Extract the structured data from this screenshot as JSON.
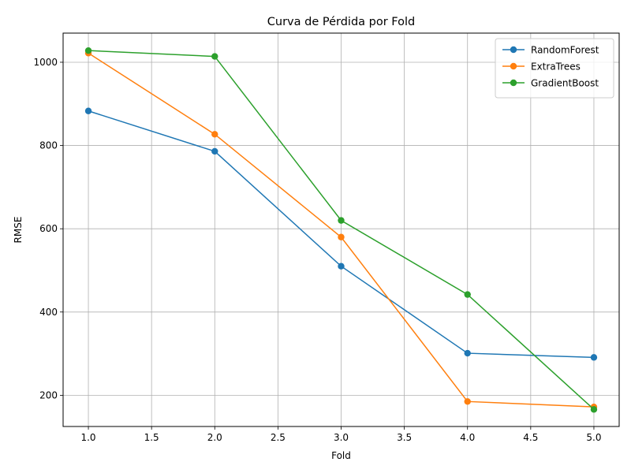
{
  "chart_data": {
    "type": "line",
    "title": "Curva de Pérdida por Fold",
    "xlabel": "Fold",
    "ylabel": "RMSE",
    "x": [
      1,
      2,
      3,
      4,
      5
    ],
    "xlim": [
      0.8,
      5.2
    ],
    "ylim": [
      125,
      1070
    ],
    "xticks": [
      1.0,
      1.5,
      2.0,
      2.5,
      3.0,
      3.5,
      4.0,
      4.5,
      5.0
    ],
    "xtick_labels": [
      "1.0",
      "1.5",
      "2.0",
      "2.5",
      "3.0",
      "3.5",
      "4.0",
      "4.5",
      "5.0"
    ],
    "yticks": [
      200,
      400,
      600,
      800,
      1000
    ],
    "ytick_labels": [
      "200",
      "400",
      "600",
      "800",
      "1000"
    ],
    "grid": true,
    "legend_position": "top-right",
    "series": [
      {
        "name": "RandomForest",
        "color": "#1f77b4",
        "marker": "circle",
        "values": [
          883,
          786,
          510,
          301,
          291
        ]
      },
      {
        "name": "ExtraTrees",
        "color": "#ff7f0e",
        "marker": "circle",
        "values": [
          1022,
          827,
          580,
          185,
          172
        ]
      },
      {
        "name": "GradientBoost",
        "color": "#2ca02c",
        "marker": "circle",
        "values": [
          1028,
          1014,
          620,
          442,
          166
        ]
      }
    ]
  }
}
